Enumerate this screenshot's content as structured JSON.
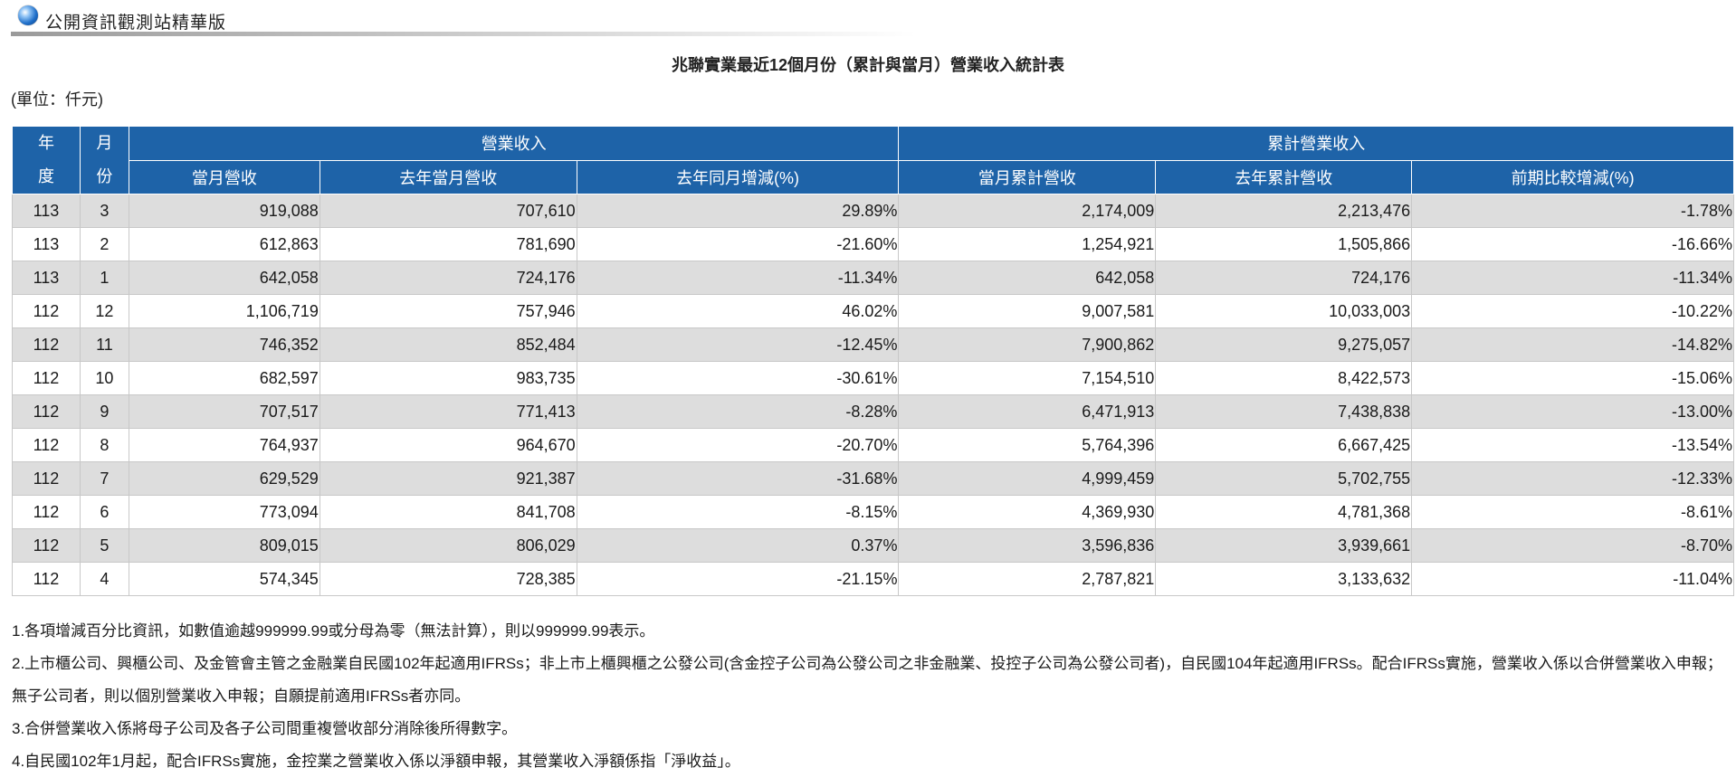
{
  "site": {
    "title": "公開資訊觀測站精華版",
    "logo_icon": "globe-icon"
  },
  "report": {
    "title": "兆聯實業最近12個月份（累計與當月）營業收入統計表",
    "unit": "(單位：仟元)"
  },
  "table": {
    "header": {
      "year": "年度",
      "month": "月份",
      "revenue_group": "營業收入",
      "cumulative_group": "累計營業收入",
      "columns": [
        "當月營收",
        "去年當月營收",
        "去年同月增減(%)",
        "當月累計營收",
        "去年累計營收",
        "前期比較增減(%)"
      ]
    },
    "rows": [
      [
        "113",
        "3",
        "919,088",
        "707,610",
        "29.89%",
        "2,174,009",
        "2,213,476",
        "-1.78%"
      ],
      [
        "113",
        "2",
        "612,863",
        "781,690",
        "-21.60%",
        "1,254,921",
        "1,505,866",
        "-16.66%"
      ],
      [
        "113",
        "1",
        "642,058",
        "724,176",
        "-11.34%",
        "642,058",
        "724,176",
        "-11.34%"
      ],
      [
        "112",
        "12",
        "1,106,719",
        "757,946",
        "46.02%",
        "9,007,581",
        "10,033,003",
        "-10.22%"
      ],
      [
        "112",
        "11",
        "746,352",
        "852,484",
        "-12.45%",
        "7,900,862",
        "9,275,057",
        "-14.82%"
      ],
      [
        "112",
        "10",
        "682,597",
        "983,735",
        "-30.61%",
        "7,154,510",
        "8,422,573",
        "-15.06%"
      ],
      [
        "112",
        "9",
        "707,517",
        "771,413",
        "-8.28%",
        "6,471,913",
        "7,438,838",
        "-13.00%"
      ],
      [
        "112",
        "8",
        "764,937",
        "964,670",
        "-20.70%",
        "5,764,396",
        "6,667,425",
        "-13.54%"
      ],
      [
        "112",
        "7",
        "629,529",
        "921,387",
        "-31.68%",
        "4,999,459",
        "5,702,755",
        "-12.33%"
      ],
      [
        "112",
        "6",
        "773,094",
        "841,708",
        "-8.15%",
        "4,369,930",
        "4,781,368",
        "-8.61%"
      ],
      [
        "112",
        "5",
        "809,015",
        "806,029",
        "0.37%",
        "3,596,836",
        "3,939,661",
        "-8.70%"
      ],
      [
        "112",
        "4",
        "574,345",
        "728,385",
        "-21.15%",
        "2,787,821",
        "3,133,632",
        "-11.04%"
      ]
    ]
  },
  "notes": [
    "1.各項增減百分比資訊，如數值逾越999999.99或分母為零（無法計算），則以999999.99表示。",
    "2.上市櫃公司、興櫃公司、及金管會主管之金融業自民國102年起適用IFRSs；非上市上櫃興櫃之公發公司(含金控子公司為公發公司之非金融業、投控子公司為公發公司者)，自民國104年起適用IFRSs。配合IFRSs實施，營業收入係以合併營業收入申報；無子公司者，則以個別營業收入申報；自願提前適用IFRSs者亦同。",
    "3.合併營業收入係將母子公司及各子公司間重複營收部分消除後所得數字。",
    "4.自民國102年1月起，配合IFRSs實施，金控業之營業收入係以淨額申報，其營業收入淨額係指「淨收益」。"
  ]
}
